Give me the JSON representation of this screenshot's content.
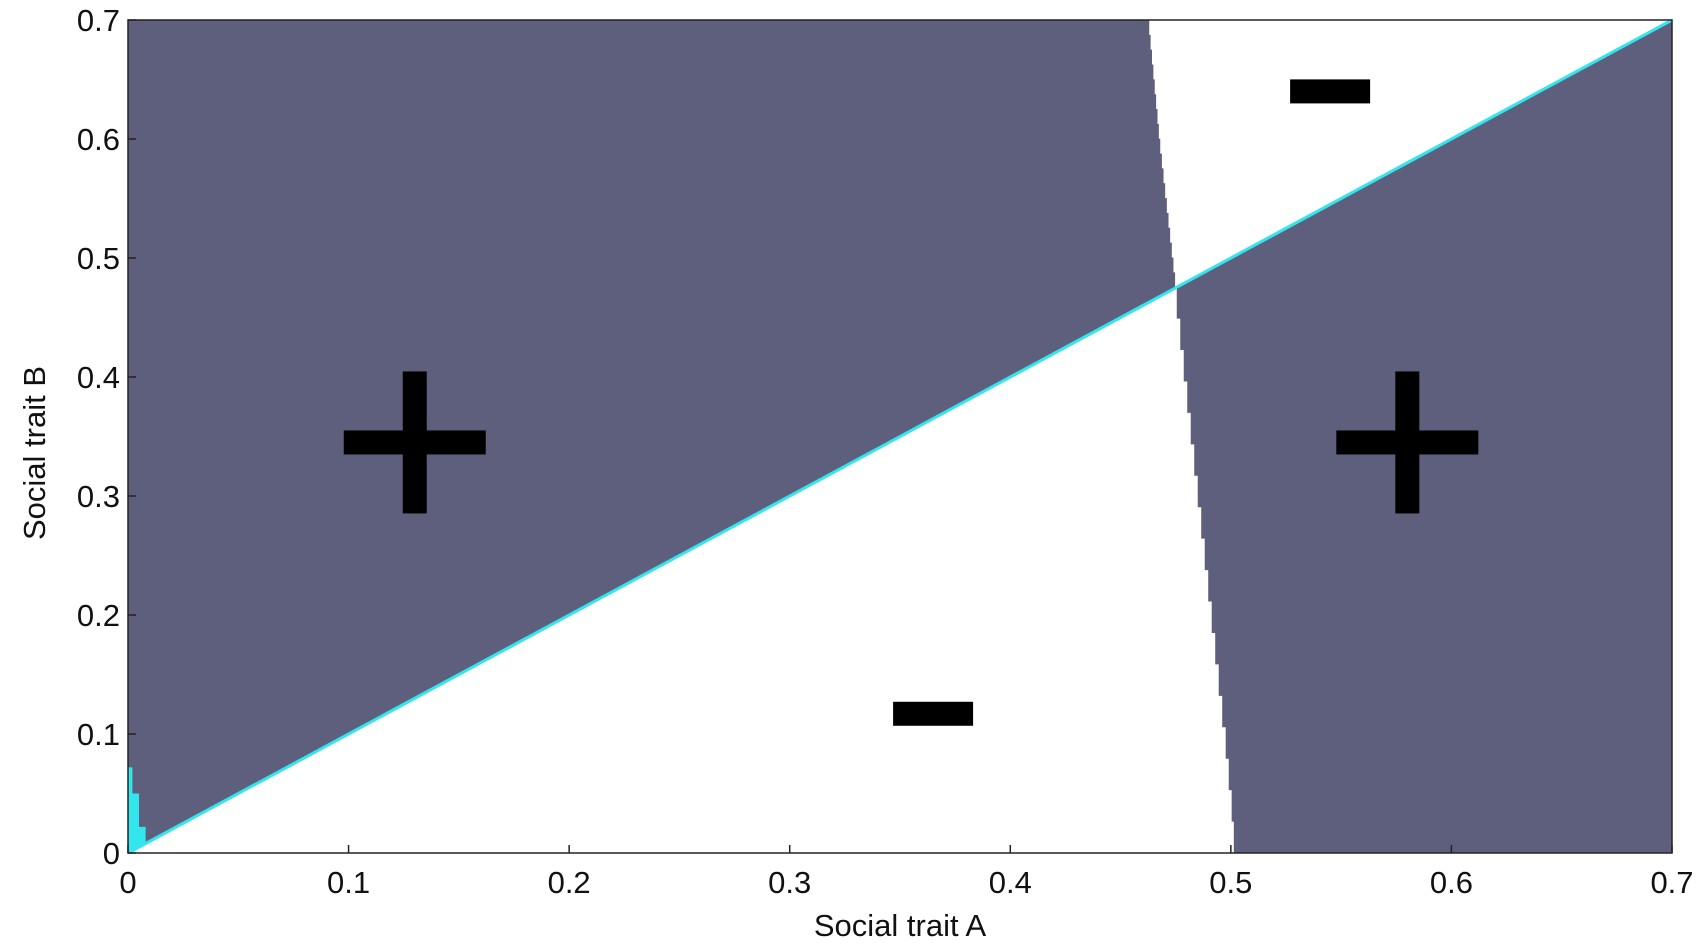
{
  "chart_data": {
    "type": "heatmap",
    "title": "",
    "xlabel": "Social trait A",
    "ylabel": "Social trait B",
    "xlim": [
      0,
      0.7
    ],
    "ylim": [
      0,
      0.7
    ],
    "x_ticks": [
      "0",
      "0.1",
      "0.2",
      "0.3",
      "0.4",
      "0.5",
      "0.6",
      "0.7"
    ],
    "y_ticks": [
      "0",
      "0.1",
      "0.2",
      "0.3",
      "0.4",
      "0.5",
      "0.6",
      "0.7"
    ],
    "grid": false,
    "colors": {
      "positive": "#5e5f7d",
      "negative": "#ffffff",
      "diagonal": "#33e6ee"
    },
    "diagonal_line": {
      "from": [
        0,
        0
      ],
      "to": [
        0.7,
        0.7
      ]
    },
    "boundary_curve": [
      [
        0.463,
        0.7
      ],
      [
        0.465,
        0.66
      ],
      [
        0.468,
        0.6
      ],
      [
        0.471,
        0.55
      ],
      [
        0.474,
        0.5
      ],
      [
        0.477,
        0.45
      ],
      [
        0.48,
        0.4
      ],
      [
        0.483,
        0.35
      ],
      [
        0.486,
        0.3
      ],
      [
        0.489,
        0.25
      ],
      [
        0.492,
        0.2
      ],
      [
        0.495,
        0.15
      ],
      [
        0.498,
        0.1
      ],
      [
        0.501,
        0.04
      ],
      [
        0.502,
        0.0
      ]
    ],
    "corner_patch": [
      [
        0,
        0
      ],
      [
        0,
        0.072
      ],
      [
        0.002,
        0.072
      ],
      [
        0.002,
        0.05
      ],
      [
        0.005,
        0.05
      ],
      [
        0.005,
        0.022
      ],
      [
        0.008,
        0.022
      ],
      [
        0.008,
        0.008
      ]
    ],
    "regions": [
      {
        "sign": "+",
        "x": 0.13,
        "y": 0.345
      },
      {
        "sign": "+",
        "x": 0.58,
        "y": 0.345
      },
      {
        "sign": "−",
        "x": 0.365,
        "y": 0.117
      },
      {
        "sign": "−",
        "x": 0.545,
        "y": 0.64
      }
    ]
  }
}
